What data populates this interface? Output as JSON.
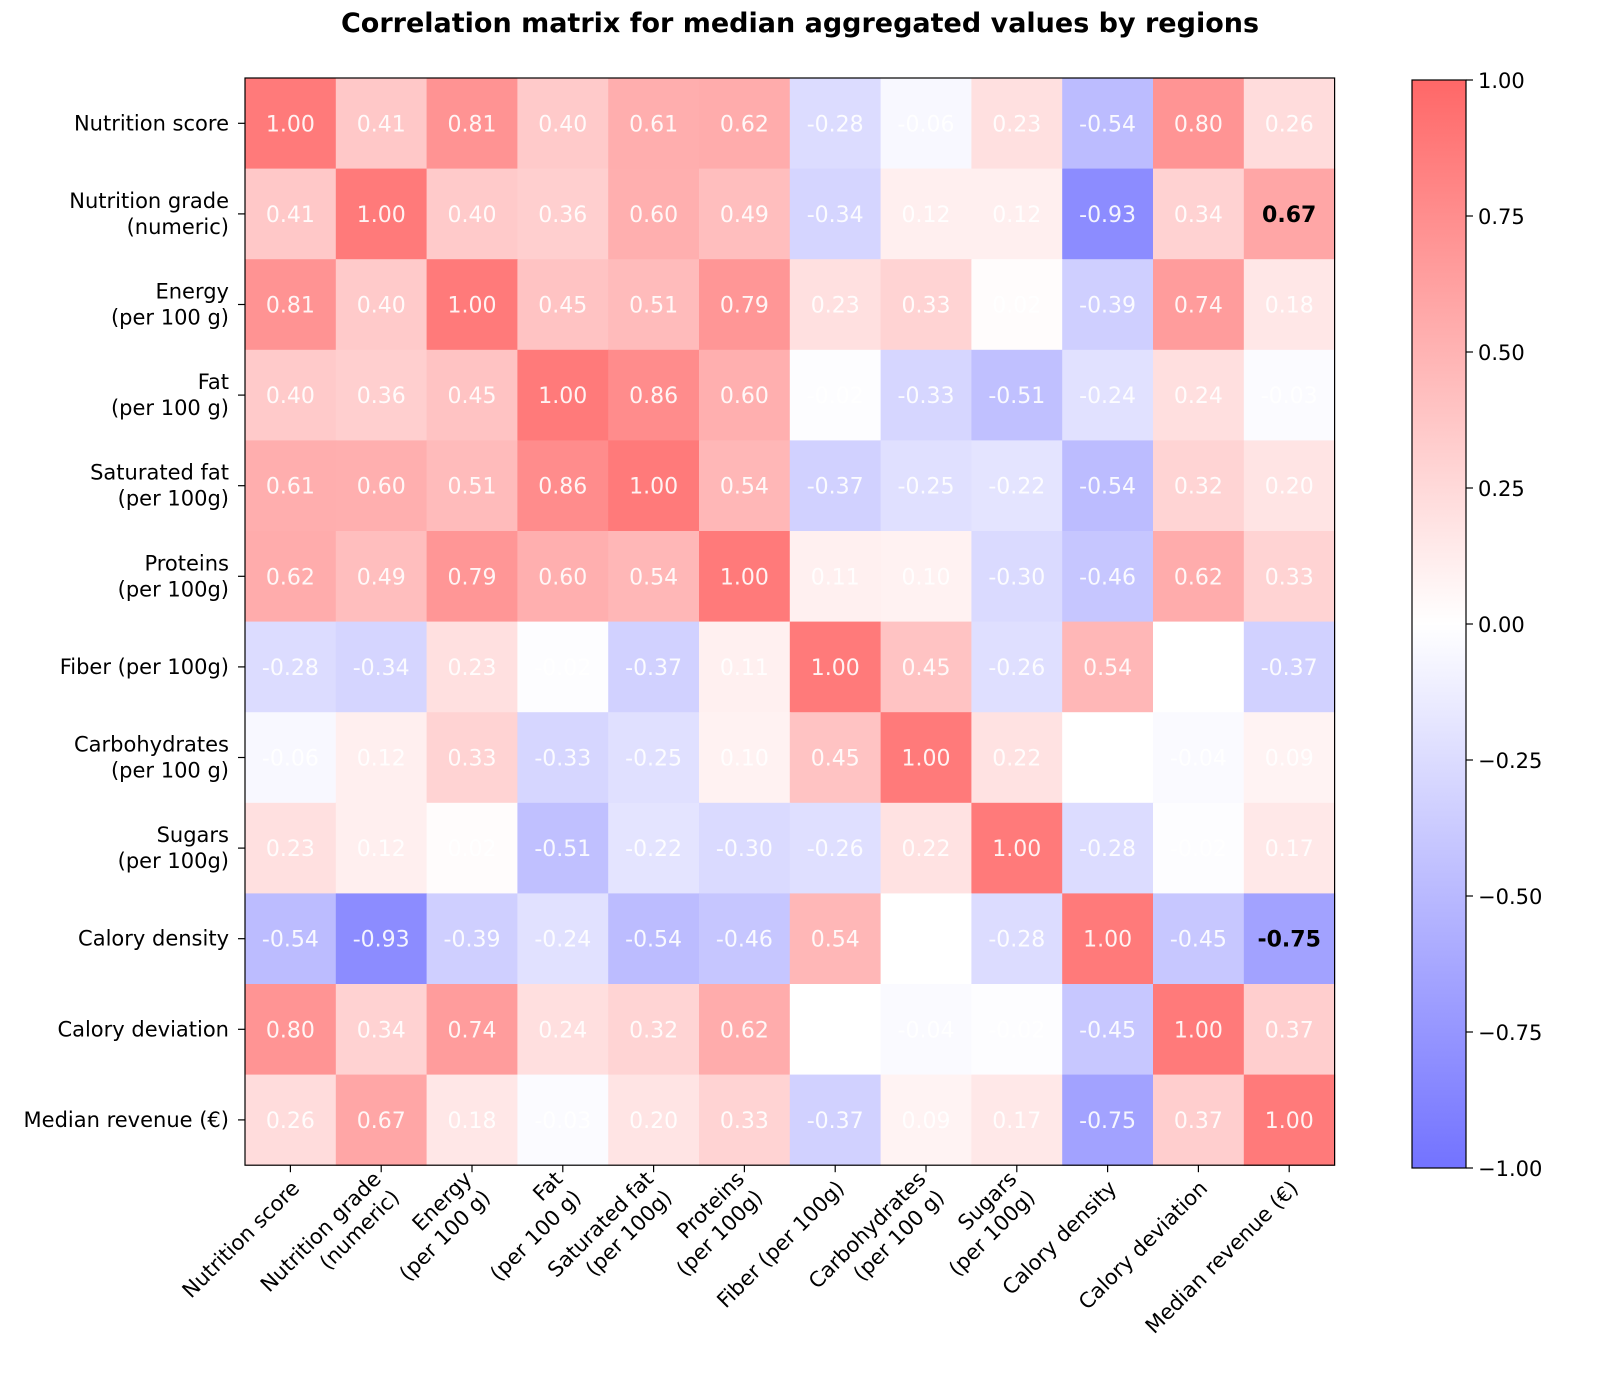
{
  "chart_data": {
    "type": "heatmap",
    "title": "Correlation matrix for median aggregated values by regions",
    "row_labels": [
      [
        "Nutrition score"
      ],
      [
        "Nutrition grade",
        "(numeric)"
      ],
      [
        "Energy",
        "(per 100 g)"
      ],
      [
        "Fat",
        "(per 100 g)"
      ],
      [
        "Saturated fat",
        "(per 100g)"
      ],
      [
        "Proteins",
        "(per 100g)"
      ],
      [
        "Fiber (per 100g)"
      ],
      [
        "Carbohydrates",
        "(per 100 g)"
      ],
      [
        "Sugars",
        "(per 100g)"
      ],
      [
        "Calory density"
      ],
      [
        "Calory deviation"
      ],
      [
        "Median revenue (€)"
      ]
    ],
    "col_labels": [
      [
        "Nutrition score"
      ],
      [
        "Nutrition grade",
        "(numeric)"
      ],
      [
        "Energy",
        "(per 100 g)"
      ],
      [
        "Fat",
        "(per 100 g)"
      ],
      [
        "Saturated fat",
        "(per 100g)"
      ],
      [
        "Proteins",
        "(per 100g)"
      ],
      [
        "Fiber (per 100g)"
      ],
      [
        "Carbohydrates",
        "(per 100 g)"
      ],
      [
        "Sugars",
        "(per 100g)"
      ],
      [
        "Calory density"
      ],
      [
        "Calory deviation"
      ],
      [
        "Median revenue (€)"
      ]
    ],
    "values": [
      [
        1.0,
        0.41,
        0.81,
        0.4,
        0.61,
        0.62,
        -0.28,
        -0.06,
        0.23,
        -0.54,
        0.8,
        0.26
      ],
      [
        0.41,
        1.0,
        0.4,
        0.36,
        0.6,
        0.49,
        -0.34,
        0.12,
        0.12,
        -0.93,
        0.34,
        0.67
      ],
      [
        0.81,
        0.4,
        1.0,
        0.45,
        0.51,
        0.79,
        0.23,
        0.33,
        0.02,
        -0.39,
        0.74,
        0.18
      ],
      [
        0.4,
        0.36,
        0.45,
        1.0,
        0.86,
        0.6,
        -0.02,
        -0.33,
        -0.51,
        -0.24,
        0.24,
        -0.03
      ],
      [
        0.61,
        0.6,
        0.51,
        0.86,
        1.0,
        0.54,
        -0.37,
        -0.25,
        -0.22,
        -0.54,
        0.32,
        0.2
      ],
      [
        0.62,
        0.49,
        0.79,
        0.6,
        0.54,
        1.0,
        0.11,
        0.1,
        -0.3,
        -0.46,
        0.62,
        0.33
      ],
      [
        -0.28,
        -0.34,
        0.23,
        -0.02,
        -0.37,
        0.11,
        1.0,
        0.45,
        -0.26,
        0.54,
        0.0,
        -0.37
      ],
      [
        -0.06,
        0.12,
        0.33,
        -0.33,
        -0.25,
        0.1,
        0.45,
        1.0,
        0.22,
        0.0,
        -0.04,
        0.09
      ],
      [
        0.23,
        0.12,
        0.02,
        -0.51,
        -0.22,
        -0.3,
        -0.26,
        0.22,
        1.0,
        -0.28,
        -0.02,
        0.17
      ],
      [
        -0.54,
        -0.93,
        -0.39,
        -0.24,
        -0.54,
        -0.46,
        0.54,
        0.0,
        -0.28,
        1.0,
        -0.45,
        -0.75
      ],
      [
        0.8,
        0.34,
        0.74,
        0.24,
        0.32,
        0.62,
        0.0,
        -0.04,
        -0.02,
        -0.45,
        1.0,
        0.37
      ],
      [
        0.26,
        0.67,
        0.18,
        -0.03,
        0.2,
        0.33,
        -0.37,
        0.09,
        0.17,
        -0.75,
        0.37,
        1.0
      ]
    ],
    "highlighted_cells": [
      [
        1,
        11
      ],
      [
        9,
        11
      ]
    ],
    "colorbar": {
      "range": [
        -1.0,
        1.0
      ],
      "ticks": [
        "1.00",
        "0.75",
        "0.50",
        "0.25",
        "0.00",
        "−0.25",
        "−0.50",
        "−0.75",
        "−1.00"
      ],
      "tick_values": [
        1.0,
        0.75,
        0.5,
        0.25,
        0.0,
        -0.25,
        -0.5,
        -0.75,
        -1.0
      ],
      "colors": {
        "high": "#ff4d4d",
        "mid": "#ffffff",
        "low": "#5a5aff"
      }
    },
    "grid": false
  }
}
